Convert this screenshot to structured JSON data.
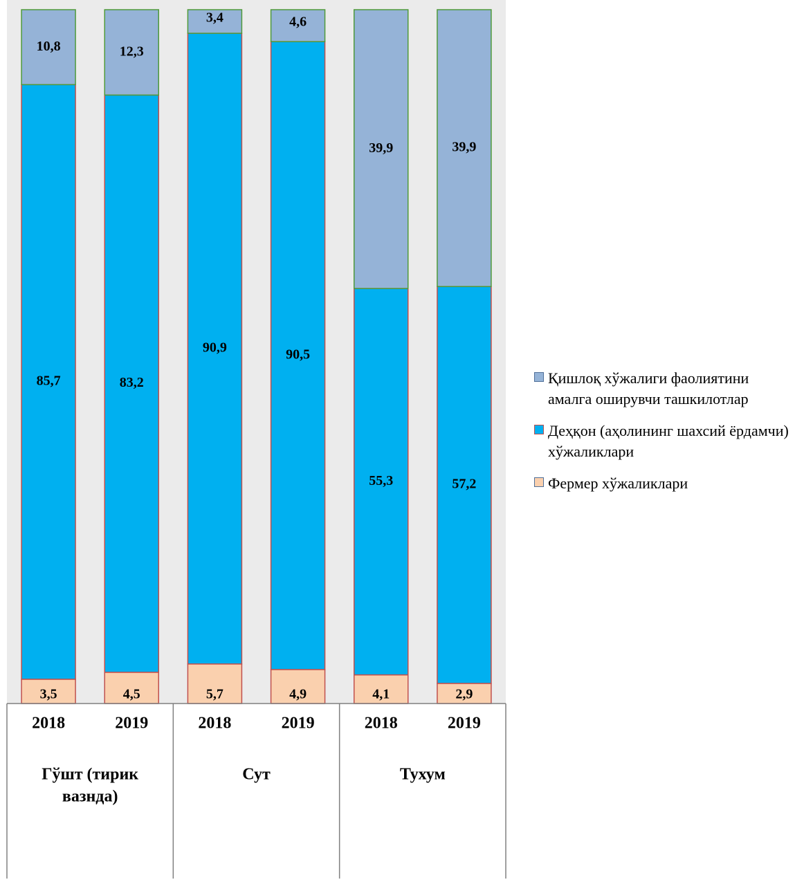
{
  "chart_data": {
    "type": "bar",
    "stacked": true,
    "percent_stacked": true,
    "groups": [
      {
        "label": "Гўшт (тирик вазнда)",
        "years": [
          "2018",
          "2019"
        ]
      },
      {
        "label": "Сут",
        "years": [
          "2018",
          "2019"
        ]
      },
      {
        "label": "Тухум",
        "years": [
          "2018",
          "2019"
        ]
      }
    ],
    "categories": [
      "2018",
      "2019",
      "2018",
      "2019",
      "2018",
      "2019"
    ],
    "series": [
      {
        "name": "Фермер хўжаликлари",
        "color": "#FAD0AE",
        "border": "#C0504D",
        "values": [
          3.5,
          4.5,
          5.7,
          4.9,
          4.1,
          2.9
        ],
        "labels": [
          "3,5",
          "4,5",
          "5,7",
          "4,9",
          "4,1",
          "2,9"
        ]
      },
      {
        "name": "Деҳқон (аҳолининг шахсий ёрдамчи) хўжаликлари",
        "color": "#00B0F0",
        "border": "#C0504D",
        "values": [
          85.7,
          83.2,
          90.9,
          90.5,
          55.3,
          57.2
        ],
        "labels": [
          "85,7",
          "83,2",
          "90,9",
          "90,5",
          "55,3",
          "57,2"
        ]
      },
      {
        "name": "Қишлоқ хўжалиги фаолиятини амалга оширувчи ташкилотлар",
        "color": "#95B3D7",
        "border": "#4F9A3A",
        "values": [
          10.8,
          12.3,
          3.4,
          4.6,
          39.9,
          39.9
        ],
        "labels": [
          "10,8",
          "12,3",
          "3,4",
          "4,6",
          "39,9",
          "39,9"
        ]
      }
    ],
    "legend_position": "right",
    "grid": false
  },
  "legend": {
    "items": [
      {
        "label": "Қишлоқ хўжалиги фаолиятини амалга оширувчи ташкилотлар",
        "color": "#95B3D7"
      },
      {
        "label": "Деҳқон (аҳолининг шахсий ёрдамчи) хўжаликлари",
        "color": "#00B0F0"
      },
      {
        "label": "Фермер хўжаликлари",
        "color": "#FAD0AE"
      }
    ]
  }
}
